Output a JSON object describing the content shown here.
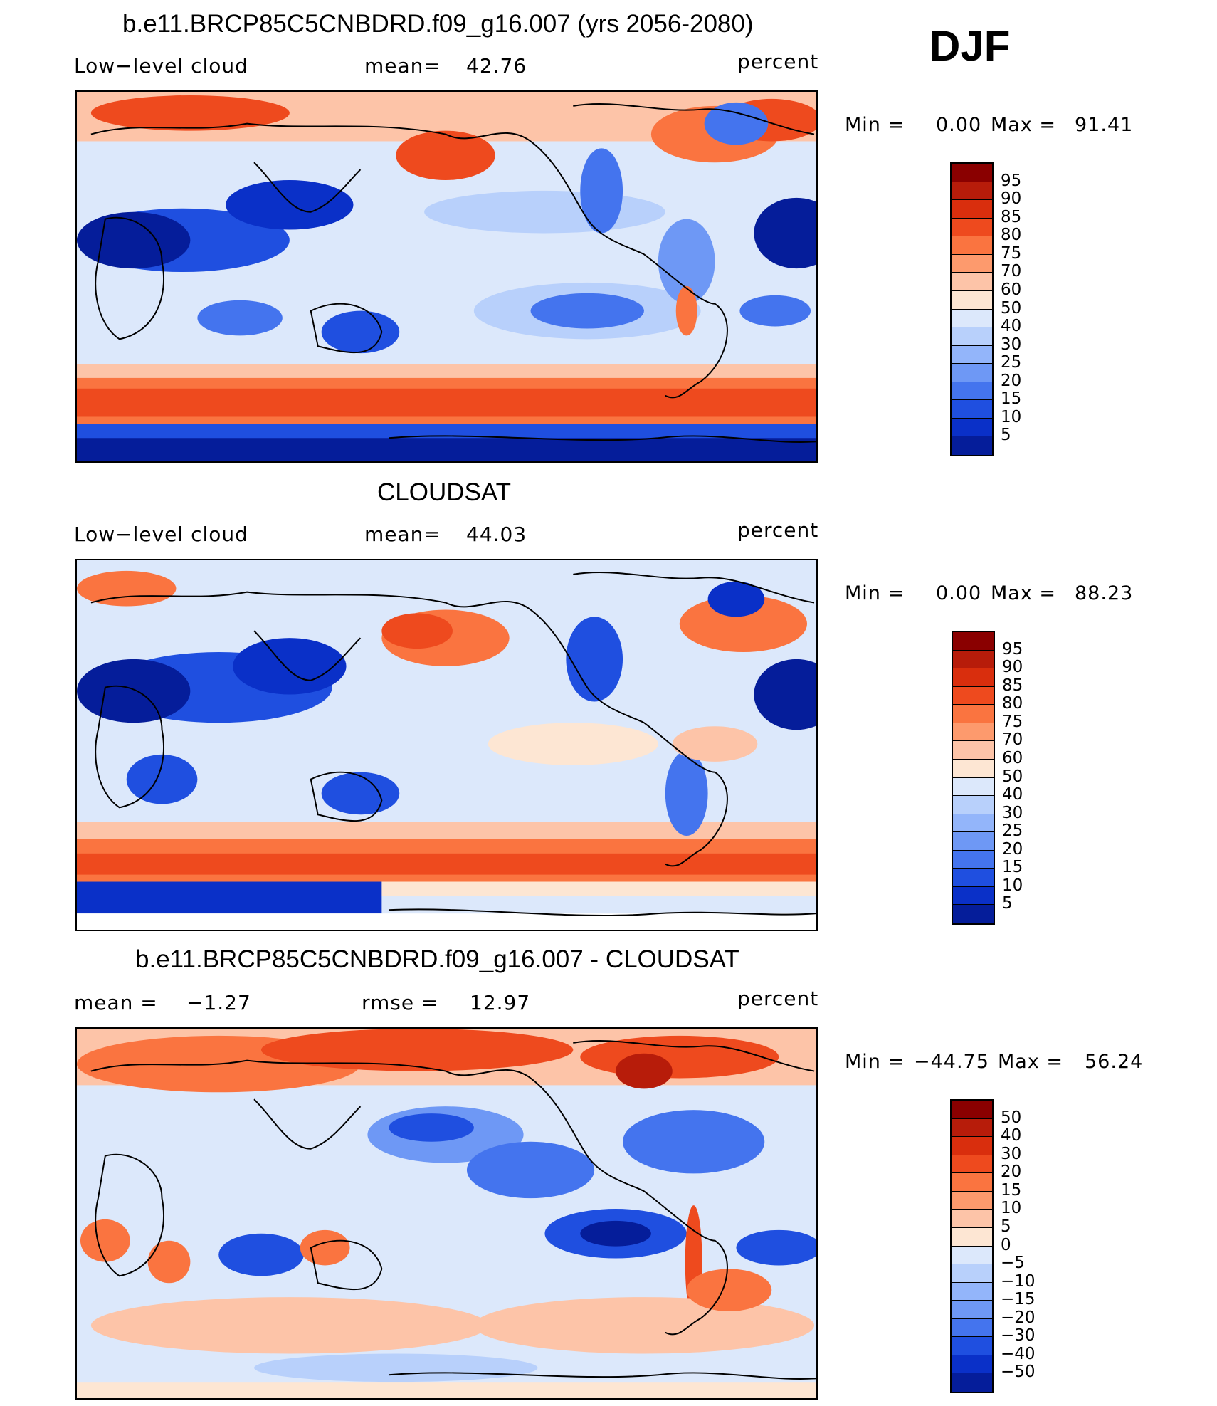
{
  "figure": {
    "season": "DJF",
    "units": "percent",
    "field_label": "Low−level cloud"
  },
  "panels": [
    {
      "id": "model",
      "title": "b.e11.BRCP85C5CNBDRD.f09_g16.007 (yrs 2056-2080)",
      "left_label": "Low−level cloud",
      "stat1_label": "mean=",
      "stat1_value": "42.76",
      "units": "percent",
      "min_text": "Min =",
      "min_value": "0.00",
      "max_text": "Max =",
      "max_value": "91.41"
    },
    {
      "id": "obs",
      "title": "CLOUDSAT",
      "left_label": "Low−level cloud",
      "stat1_label": "mean=",
      "stat1_value": "44.03",
      "units": "percent",
      "min_text": "Min =",
      "min_value": "0.00",
      "max_text": "Max =",
      "max_value": "88.23"
    },
    {
      "id": "diff",
      "title": "b.e11.BRCP85C5CNBDRD.f09_g16.007 - CLOUDSAT",
      "left_label": "mean =",
      "left_value": "−1.27",
      "stat1_label": "rmse =",
      "stat1_value": "12.97",
      "units": "percent",
      "min_text": "Min =",
      "min_value": "−44.75",
      "max_text": "Max =",
      "max_value": "56.24"
    }
  ],
  "chart_data": [
    {
      "type": "heatmap",
      "title": "b.e11.BRCP85C5CNBDRD.f09_g16.007 (yrs 2056-2080)",
      "variable": "Low-level cloud",
      "units": "percent",
      "mean": 42.76,
      "min": 0.0,
      "max": 91.41,
      "colorbar_levels": [
        "95",
        "90",
        "85",
        "80",
        "75",
        "70",
        "60",
        "50",
        "40",
        "30",
        "25",
        "20",
        "15",
        "10",
        "5"
      ],
      "colorbar_colors": [
        "#8a0000",
        "#b71c0a",
        "#d92e0d",
        "#ee4a1e",
        "#fa7440",
        "#fd9a6d",
        "#fdc4a8",
        "#fde6d3",
        "#dce8fb",
        "#b8d0fb",
        "#93b5fa",
        "#6e98f5",
        "#4474ee",
        "#1f4fe0",
        "#0a30c8",
        "#051d9a"
      ]
    },
    {
      "type": "heatmap",
      "title": "CLOUDSAT",
      "variable": "Low-level cloud",
      "units": "percent",
      "mean": 44.03,
      "min": 0.0,
      "max": 88.23,
      "colorbar_levels": [
        "95",
        "90",
        "85",
        "80",
        "75",
        "70",
        "60",
        "50",
        "40",
        "30",
        "25",
        "20",
        "15",
        "10",
        "5"
      ],
      "colorbar_colors": [
        "#8a0000",
        "#b71c0a",
        "#d92e0d",
        "#ee4a1e",
        "#fa7440",
        "#fd9a6d",
        "#fdc4a8",
        "#fde6d3",
        "#dce8fb",
        "#b8d0fb",
        "#93b5fa",
        "#6e98f5",
        "#4474ee",
        "#1f4fe0",
        "#0a30c8",
        "#051d9a"
      ]
    },
    {
      "type": "heatmap",
      "title": "b.e11.BRCP85C5CNBDRD.f09_g16.007 - CLOUDSAT",
      "variable": "Low-level cloud difference",
      "units": "percent",
      "mean": -1.27,
      "rmse": 12.97,
      "min": -44.75,
      "max": 56.24,
      "colorbar_levels": [
        "50",
        "40",
        "30",
        "20",
        "15",
        "10",
        "5",
        "0",
        "−5",
        "−10",
        "−15",
        "−20",
        "−30",
        "−40",
        "−50"
      ],
      "colorbar_colors": [
        "#8a0000",
        "#b71c0a",
        "#d92e0d",
        "#ee4a1e",
        "#fa7440",
        "#fd9a6d",
        "#fdc4a8",
        "#fde6d3",
        "#dce8fb",
        "#b8d0fb",
        "#93b5fa",
        "#6e98f5",
        "#4474ee",
        "#1f4fe0",
        "#0a30c8",
        "#051d9a"
      ]
    }
  ]
}
